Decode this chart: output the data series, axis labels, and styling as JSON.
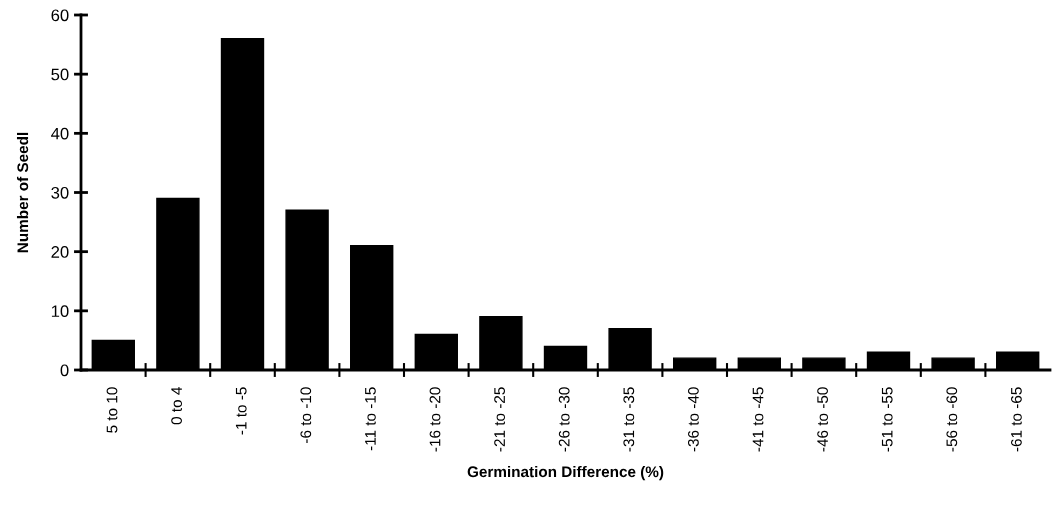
{
  "chart_data": {
    "type": "bar",
    "xlabel": "Germination Difference (%)",
    "ylabel": "Number of Seedl",
    "categories": [
      "5 to 10",
      "0 to 4",
      "-1 to -5",
      "-6 to -10",
      "-11 to -15",
      "-16 to -20",
      "-21 to -25",
      "-26 to -30",
      "-31 to -35",
      "-36 to -40",
      "-41 to -45",
      "-46 to -50",
      "-51 to -55",
      "-56 to -60",
      "-61 to -65"
    ],
    "values": [
      5,
      29,
      56,
      27,
      21,
      6,
      9,
      4,
      7,
      2,
      2,
      2,
      3,
      2,
      3
    ],
    "color": "#000000",
    "ylim": [
      0,
      60
    ],
    "yticks": [
      0,
      10,
      20,
      30,
      40,
      50,
      60
    ],
    "grid": false,
    "legend": false
  }
}
